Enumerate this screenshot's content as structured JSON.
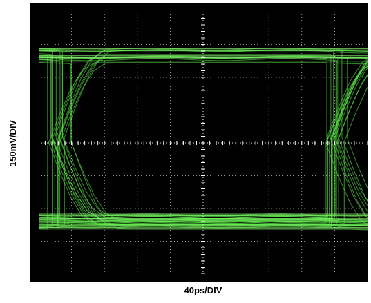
{
  "chart_data": {
    "type": "line",
    "title": "",
    "xlabel": "40ps/DIV",
    "ylabel": "150mV/DIV",
    "grid": true,
    "x_divisions": 10,
    "y_divisions": 8,
    "xlim": [
      0,
      10
    ],
    "ylim": [
      -4,
      4
    ],
    "eye": {
      "crossing_left_div": 0.65,
      "crossing_right_div": 9.1,
      "high_level_div": 2.65,
      "low_level_div": -2.4,
      "crossing_level_div": 0.0
    }
  },
  "colors": {
    "background": "#000000",
    "grid": "#ffffff",
    "trace": "#5ef04a"
  }
}
